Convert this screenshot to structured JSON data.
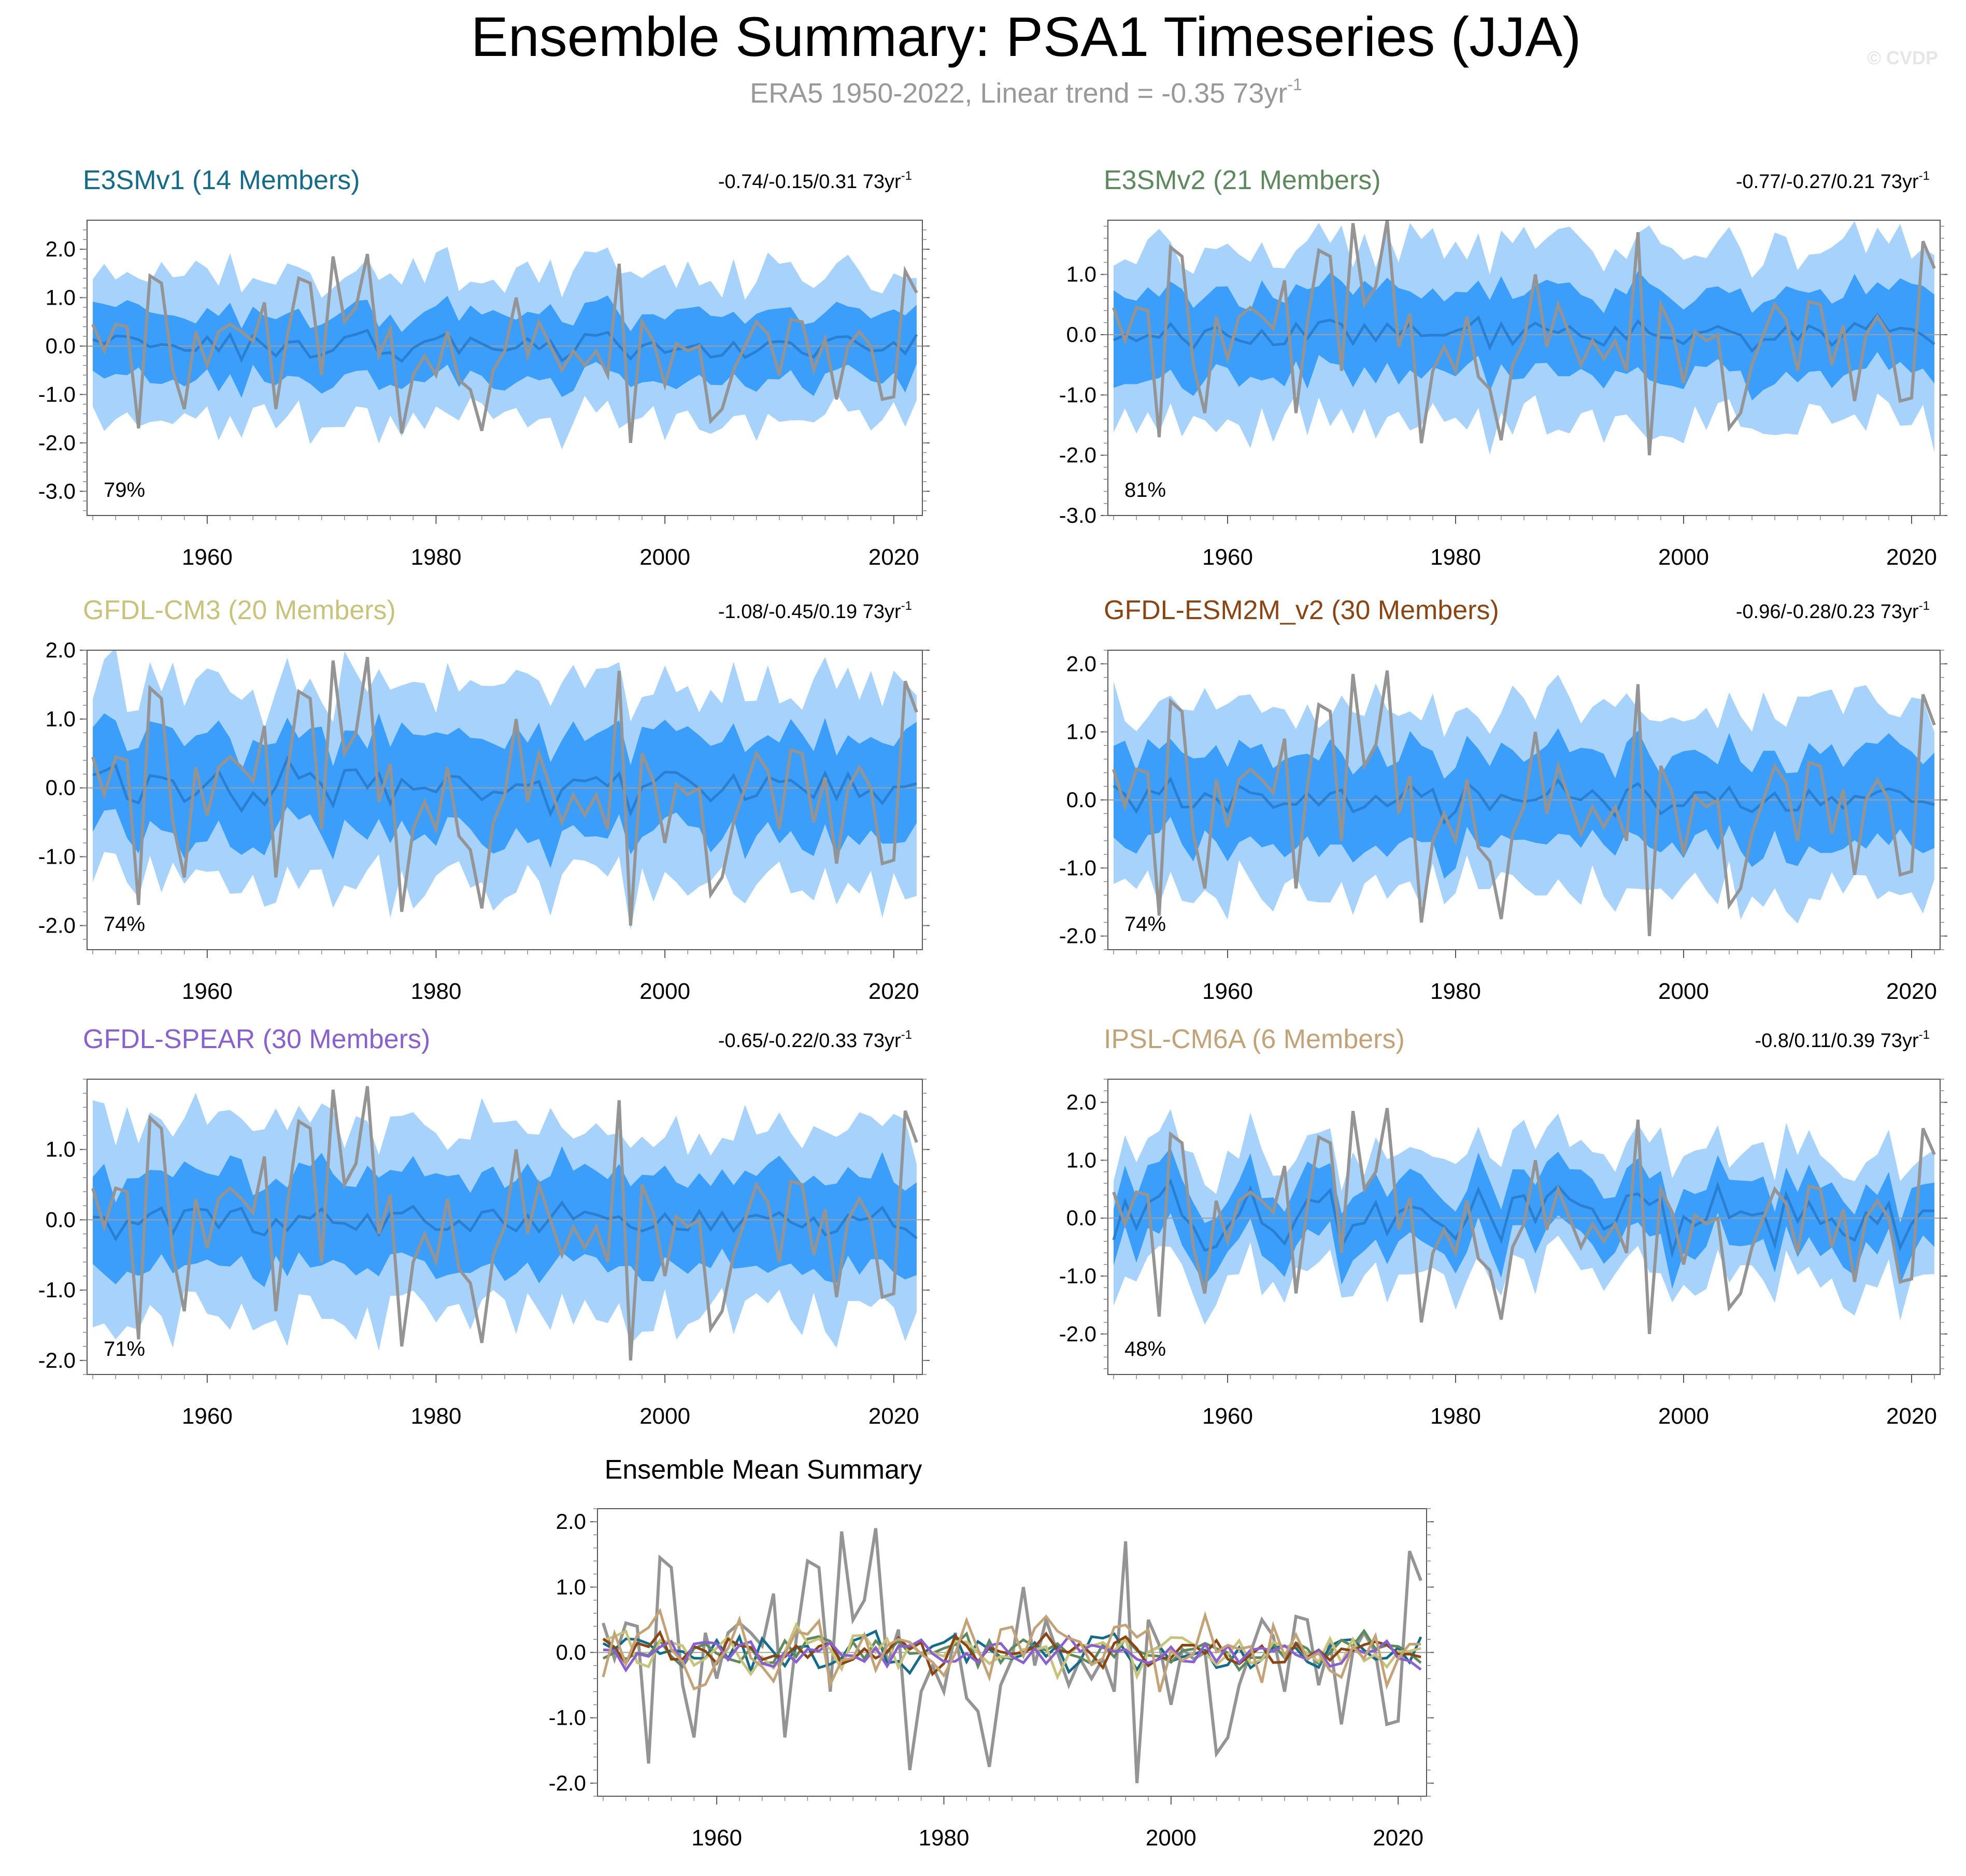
{
  "figure": {
    "title": "Ensemble Summary: PSA1 Timeseries (JJA)",
    "subtitle_main": "ERA5 1950-2022, Linear trend = -0.35 73yr",
    "subtitle_sup": "-1",
    "watermark": "© CVDP"
  },
  "colors": {
    "outer_band": "#a6d2fb",
    "inner_band": "#3a9efa",
    "ensemble_mean": "#2a7fd0",
    "observations": "#949494",
    "zero_line": "#a0a0a0",
    "axis": "#555555"
  },
  "chart_data": [
    {
      "type": "area",
      "title": "E3SMv1 (14 Members)",
      "title_color": "#146b8a",
      "trend_text": "-0.74/-0.15/0.31 73yr",
      "trend_sup": "-1",
      "pct_label": "79%",
      "ylim": [
        -3.5,
        2.6
      ],
      "yticks": [
        2,
        1,
        0,
        -1,
        -2,
        -3
      ],
      "yticklabels": [
        "2.0",
        "1.0",
        "0.0",
        "-1.0",
        "-2.0",
        "-3.0"
      ],
      "xlim": [
        1949.5,
        2022.5
      ],
      "xticks": [
        1960,
        1980,
        2000,
        2020
      ],
      "xticklabels": [
        "1960",
        "1980",
        "2000",
        "2020"
      ],
      "seed": 11,
      "mean_amp": 0.28,
      "inner_amp": 0.72,
      "outer_amp": 1.55
    },
    {
      "type": "area",
      "title": "E3SMv2 (21 Members)",
      "title_color": "#5d8a5d",
      "trend_text": "-0.77/-0.27/0.21 73yr",
      "trend_sup": "-1",
      "pct_label": "81%",
      "ylim": [
        -3.0,
        1.9
      ],
      "yticks": [
        1,
        0,
        -1,
        -2,
        -3
      ],
      "yticklabels": [
        "1.0",
        "0.0",
        "-1.0",
        "-2.0",
        "-3.0"
      ],
      "xlim": [
        1949.5,
        2022.5
      ],
      "xticks": [
        1960,
        1980,
        2000,
        2020
      ],
      "xticklabels": [
        "1960",
        "1980",
        "2000",
        "2020"
      ],
      "seed": 23,
      "mean_amp": 0.22,
      "inner_amp": 0.7,
      "outer_amp": 1.5
    },
    {
      "type": "area",
      "title": "GFDL-CM3 (20 Members)",
      "title_color": "#c8c27a",
      "trend_text": "-1.08/-0.45/0.19 73yr",
      "trend_sup": "-1",
      "pct_label": "74%",
      "ylim": [
        -2.35,
        2.0
      ],
      "yticks": [
        2,
        1,
        0,
        -1,
        -2
      ],
      "yticklabels": [
        "2.0",
        "1.0",
        "0.0",
        "-1.0",
        "-2.0"
      ],
      "xlim": [
        1949.5,
        2022.5
      ],
      "xticks": [
        1960,
        1980,
        2000,
        2020
      ],
      "xticklabels": [
        "1960",
        "1980",
        "2000",
        "2020"
      ],
      "seed": 37,
      "mean_amp": 0.3,
      "inner_amp": 0.75,
      "outer_amp": 1.45
    },
    {
      "type": "area",
      "title": "GFDL-ESM2M_v2 (30 Members)",
      "title_color": "#8b4513",
      "trend_text": "-0.96/-0.28/0.23 73yr",
      "trend_sup": "-1",
      "pct_label": "74%",
      "ylim": [
        -2.2,
        2.2
      ],
      "yticks": [
        2,
        1,
        0,
        -1,
        -2
      ],
      "yticklabels": [
        "2.0",
        "1.0",
        "0.0",
        "-1.0",
        "-2.0"
      ],
      "xlim": [
        1949.5,
        2022.5
      ],
      "xticks": [
        1960,
        1980,
        2000,
        2020
      ],
      "xticklabels": [
        "1960",
        "1980",
        "2000",
        "2020"
      ],
      "seed": 41,
      "mean_amp": 0.24,
      "inner_amp": 0.7,
      "outer_amp": 1.4
    },
    {
      "type": "area",
      "title": "GFDL-SPEAR (30 Members)",
      "title_color": "#8a5fcf",
      "trend_text": "-0.65/-0.22/0.33 73yr",
      "trend_sup": "-1",
      "pct_label": "71%",
      "ylim": [
        -2.2,
        2.0
      ],
      "yticks": [
        1,
        0,
        -1,
        -2
      ],
      "yticklabels": [
        "1.0",
        "0.0",
        "-1.0",
        "-2.0"
      ],
      "xlim": [
        1949.5,
        2022.5
      ],
      "xticks": [
        1960,
        1980,
        2000,
        2020
      ],
      "xticklabels": [
        "1960",
        "1980",
        "2000",
        "2020"
      ],
      "seed": 53,
      "mean_amp": 0.2,
      "inner_amp": 0.68,
      "outer_amp": 1.4
    },
    {
      "type": "area",
      "title": "IPSL-CM6A (6 Members)",
      "title_color": "#c4a277",
      "trend_text": "-0.8/0.11/0.39 73yr",
      "trend_sup": "-1",
      "pct_label": "48%",
      "ylim": [
        -2.7,
        2.4
      ],
      "yticks": [
        2,
        1,
        0,
        -1,
        -2
      ],
      "yticklabels": [
        "2.0",
        "1.0",
        "0.0",
        "-1.0",
        "-2.0"
      ],
      "xlim": [
        1949.5,
        2022.5
      ],
      "xticks": [
        1960,
        1980,
        2000,
        2020
      ],
      "xticklabels": [
        "1960",
        "1980",
        "2000",
        "2020"
      ],
      "seed": 67,
      "mean_amp": 0.45,
      "inner_amp": 0.55,
      "outer_amp": 1.1
    },
    {
      "type": "line",
      "title": "Ensemble Mean Summary",
      "ylim": [
        -2.2,
        2.2
      ],
      "yticks": [
        2,
        1,
        0,
        -1,
        -2
      ],
      "yticklabels": [
        "2.0",
        "1.0",
        "0.0",
        "-1.0",
        "-2.0"
      ],
      "xlim": [
        1949.5,
        2022.5
      ],
      "xticks": [
        1960,
        1980,
        2000,
        2020
      ],
      "xticklabels": [
        "1960",
        "1980",
        "2000",
        "2020"
      ],
      "series": [
        {
          "name": "E3SMv1",
          "color": "#146b8a",
          "seed": 11,
          "amp": 0.28
        },
        {
          "name": "E3SMv2",
          "color": "#5d8a5d",
          "seed": 23,
          "amp": 0.22
        },
        {
          "name": "GFDL-CM3",
          "color": "#c8c27a",
          "seed": 37,
          "amp": 0.3
        },
        {
          "name": "GFDL-ESM2M_v2",
          "color": "#8b4513",
          "seed": 41,
          "amp": 0.24
        },
        {
          "name": "GFDL-SPEAR",
          "color": "#8a5fcf",
          "seed": 53,
          "amp": 0.2
        },
        {
          "name": "IPSL-CM6A",
          "color": "#c4a277",
          "seed": 67,
          "amp": 0.45
        }
      ]
    }
  ],
  "observations": {
    "name": "ERA5",
    "start_year": 1950,
    "values": [
      0.45,
      -0.1,
      0.45,
      0.4,
      -1.7,
      1.45,
      1.3,
      -0.5,
      -1.3,
      0.3,
      -0.4,
      0.3,
      0.45,
      0.3,
      0.1,
      0.9,
      -1.3,
      0.2,
      1.4,
      1.3,
      -0.6,
      1.85,
      0.5,
      0.8,
      1.9,
      -0.2,
      0.35,
      -1.8,
      -0.6,
      -0.2,
      -0.6,
      0.3,
      -0.7,
      -0.9,
      -1.75,
      -0.5,
      -0.1,
      1.0,
      -0.2,
      0.5,
      0.0,
      -0.5,
      -0.1,
      -0.4,
      -0.1,
      -0.6,
      1.7,
      -2.0,
      0.5,
      0.1,
      -0.8,
      0.05,
      -0.1,
      0.0,
      -1.55,
      -1.3,
      -0.5,
      0.0,
      0.5,
      0.25,
      -0.6,
      0.55,
      0.5,
      -0.5,
      0.15,
      -1.1,
      0.0,
      0.3,
      0.0,
      -1.1,
      -1.05,
      1.55,
      1.1
    ]
  }
}
